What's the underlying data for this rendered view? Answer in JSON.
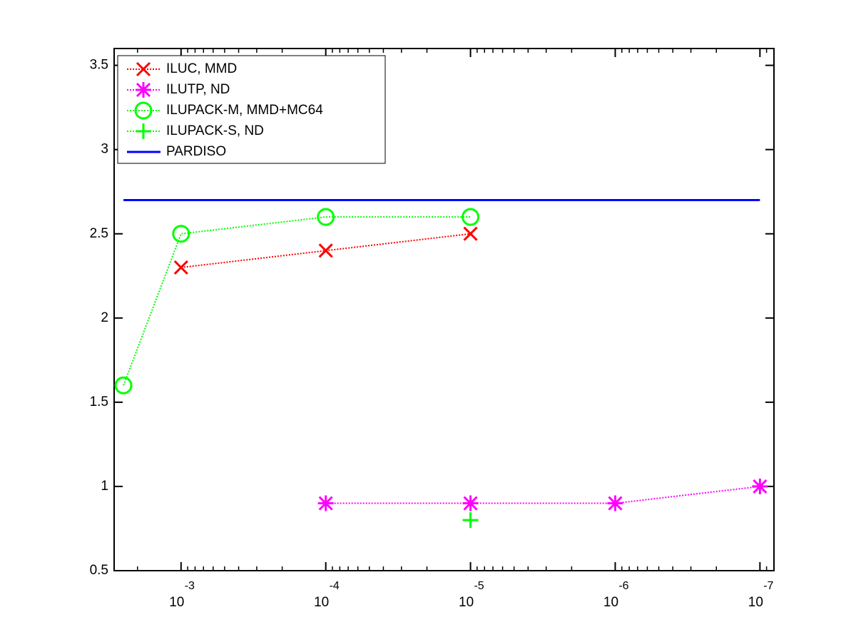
{
  "chart_data": {
    "type": "line",
    "xscale": "log",
    "xlim": [
      0.0029,
      8e-08
    ],
    "ylim": [
      0.5,
      3.6
    ],
    "xticks": [
      {
        "value": 0.001,
        "label": "10",
        "exponent": "-3"
      },
      {
        "value": 0.0001,
        "label": "10",
        "exponent": "-4"
      },
      {
        "value": 1e-05,
        "label": "10",
        "exponent": "-5"
      },
      {
        "value": 1e-06,
        "label": "10",
        "exponent": "-6"
      },
      {
        "value": 1e-07,
        "label": "10",
        "exponent": "-7"
      }
    ],
    "yticks": [
      0.5,
      1,
      1.5,
      2,
      2.5,
      3,
      3.5
    ],
    "legend": "upper left",
    "series": [
      {
        "name": "ILUC, MMD",
        "color": "#ff0000",
        "marker": "x",
        "linestyle": "dotted",
        "x": [
          0.001,
          0.0001,
          1e-05
        ],
        "values": [
          2.3,
          2.4,
          2.5
        ]
      },
      {
        "name": "ILUTP,  ND",
        "color": "#ff00ff",
        "marker": "star",
        "linestyle": "dotted",
        "x": [
          0.0001,
          1e-05,
          1e-06,
          1e-07
        ],
        "values": [
          0.9,
          0.9,
          0.9,
          1.0
        ]
      },
      {
        "name": "ILUPACK-M, MMD+MC64",
        "color": "#00ff00",
        "marker": "circle",
        "linestyle": "dotted",
        "x": [
          0.0025,
          0.001,
          0.0001,
          1e-05
        ],
        "values": [
          1.6,
          2.5,
          2.6,
          2.6
        ]
      },
      {
        "name": "ILUPACK-S, ND",
        "color": "#00ff00",
        "marker": "plus",
        "linestyle": "dotted",
        "x": [
          1e-05
        ],
        "values": [
          0.8
        ]
      },
      {
        "name": "PARDISO",
        "color": "#0000ff",
        "marker": "none",
        "linestyle": "solid",
        "x": [
          0.0025,
          1e-07
        ],
        "values": [
          2.7,
          2.7
        ]
      }
    ]
  }
}
